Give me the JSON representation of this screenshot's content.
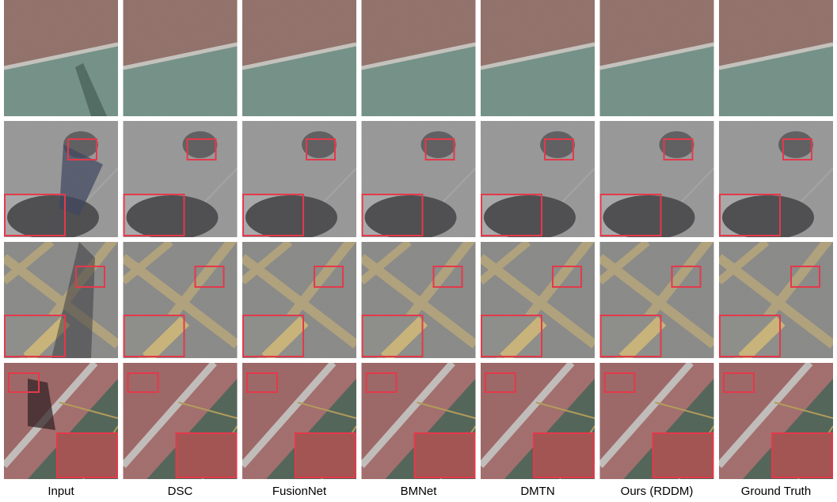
{
  "figure": {
    "columns": [
      "Input",
      "DSC",
      "FusionNet",
      "BMNet",
      "DMTN",
      "Ours (RDDM)",
      "Ground Truth"
    ]
  }
}
